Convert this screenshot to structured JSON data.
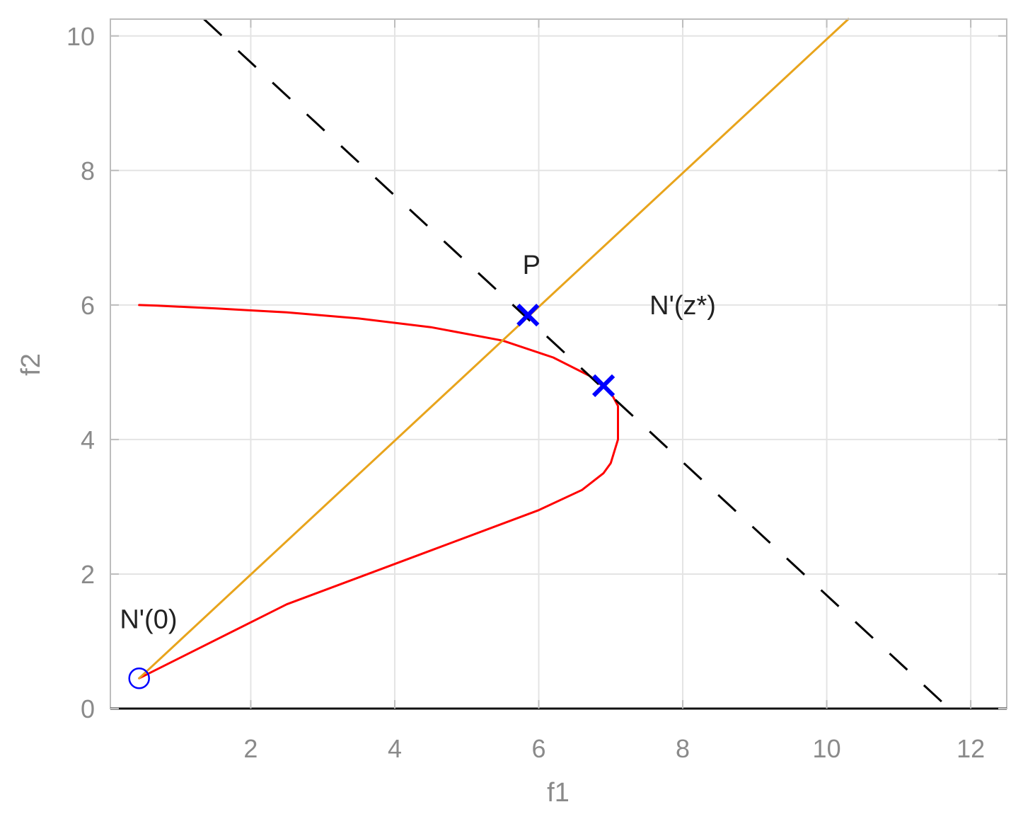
{
  "chart_data": {
    "type": "line",
    "title": "",
    "xlabel": "f1",
    "ylabel": "f2",
    "xlim": [
      0.05,
      12.5
    ],
    "ylim": [
      0,
      10.25
    ],
    "x_ticks": [
      2,
      4,
      6,
      8,
      10,
      12
    ],
    "y_ticks": [
      0,
      2,
      4,
      6,
      8,
      10
    ],
    "grid": true,
    "colors": {
      "pareto_front": "#ff0000",
      "ray": "#e8a41c",
      "tangent_line": "#000000",
      "markers": "#0000ff",
      "grid": "#e4e4e4",
      "box": "#bdbdbd",
      "tick_text": "#8a8a8a"
    },
    "series": [
      {
        "style": "solid",
        "x": [
          0.45,
          0.7,
          1.5,
          2.5,
          3.5,
          4.5,
          5.5,
          6.2,
          6.7,
          7.0,
          7.1,
          7.1,
          7.0,
          6.9,
          6.6,
          6.0,
          4.5,
          2.5,
          0.45
        ],
        "y": [
          6.0,
          5.99,
          5.95,
          5.89,
          5.8,
          5.67,
          5.47,
          5.22,
          4.95,
          4.7,
          4.5,
          4.0,
          3.65,
          3.5,
          3.25,
          2.95,
          2.35,
          1.55,
          0.45
        ]
      },
      {
        "style": "solid",
        "x": [
          0.45,
          10.3
        ],
        "y": [
          0.45,
          10.25
        ]
      },
      {
        "style": "dashed",
        "x": [
          1.35,
          11.7
        ],
        "y": [
          10.25,
          0
        ]
      }
    ],
    "points": [
      {
        "x": 5.85,
        "y": 5.85,
        "marker": "x",
        "label": "P",
        "label_at": [
          5.9,
          6.6
        ]
      },
      {
        "x": 6.9,
        "y": 4.8,
        "marker": "x",
        "label": "N'(z*)",
        "label_at": [
          8.0,
          6.0
        ]
      },
      {
        "x": 0.45,
        "y": 0.45,
        "marker": "o",
        "label": "N'(0)",
        "label_at": [
          0.58,
          1.33
        ]
      }
    ]
  }
}
